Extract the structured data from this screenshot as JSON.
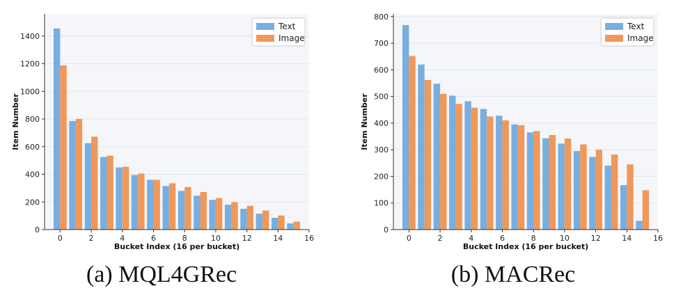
{
  "colors": {
    "text_series": "#78aee0",
    "image_series": "#f0985a",
    "panel_bg": "#f4f6fa",
    "grid": "#e3e6ec"
  },
  "chart_data": [
    {
      "type": "bar",
      "caption": "(a) MQL4GRec",
      "xlabel": "Bucket Index (16 per bucket)",
      "ylabel": "Item Number",
      "categories": [
        0,
        1,
        2,
        3,
        4,
        5,
        6,
        7,
        8,
        9,
        10,
        11,
        12,
        13,
        14,
        15
      ],
      "xlim": [
        -1,
        16
      ],
      "ylim": [
        0,
        1560
      ],
      "yticks": [
        0,
        200,
        400,
        600,
        800,
        1000,
        1200,
        1400
      ],
      "xticks": [
        0,
        2,
        4,
        6,
        8,
        10,
        12,
        14,
        16
      ],
      "grid": true,
      "legend_position": "top-right",
      "series": [
        {
          "name": "Text",
          "values": [
            1455,
            785,
            625,
            525,
            450,
            395,
            360,
            315,
            280,
            245,
            215,
            180,
            150,
            115,
            85,
            45
          ]
        },
        {
          "name": "Image",
          "values": [
            1188,
            800,
            672,
            535,
            455,
            405,
            360,
            335,
            308,
            272,
            228,
            198,
            172,
            138,
            102,
            58
          ]
        }
      ]
    },
    {
      "type": "bar",
      "caption": "(b) MACRec",
      "xlabel": "Bucket Index (16 per bucket)",
      "ylabel": "Item Number",
      "categories": [
        0,
        1,
        2,
        3,
        4,
        5,
        6,
        7,
        8,
        9,
        10,
        11,
        12,
        13,
        14,
        15
      ],
      "xlim": [
        -1,
        16
      ],
      "ylim": [
        0,
        810
      ],
      "yticks": [
        0,
        100,
        200,
        300,
        400,
        500,
        600,
        700,
        800
      ],
      "xticks": [
        0,
        2,
        4,
        6,
        8,
        10,
        12,
        14,
        16
      ],
      "grid": true,
      "legend_position": "top-right",
      "series": [
        {
          "name": "Text",
          "values": [
            768,
            620,
            548,
            503,
            482,
            453,
            428,
            395,
            365,
            343,
            323,
            295,
            273,
            240,
            167,
            33
          ]
        },
        {
          "name": "Image",
          "values": [
            652,
            562,
            510,
            472,
            458,
            425,
            410,
            392,
            370,
            355,
            342,
            320,
            300,
            282,
            245,
            148
          ]
        }
      ]
    }
  ]
}
